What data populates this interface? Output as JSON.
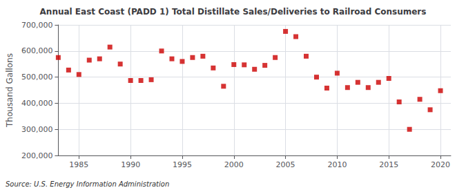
{
  "chart_data": {
    "type": "scatter",
    "title": "Annual East Coast (PADD 1) Total Distillate Sales/Deliveries to Railroad Consumers",
    "ylabel": "Thousand Gallons",
    "annotations": [
      "Source: U.S. Energy Information Administration"
    ],
    "x": [
      1983,
      1984,
      1985,
      1986,
      1987,
      1988,
      1989,
      1990,
      1991,
      1992,
      1993,
      1994,
      1995,
      1996,
      1997,
      1998,
      1999,
      2000,
      2001,
      2002,
      2003,
      2004,
      2005,
      2006,
      2007,
      2008,
      2009,
      2010,
      2011,
      2012,
      2013,
      2014,
      2015,
      2016,
      2017,
      2018,
      2019,
      2020
    ],
    "values": [
      575000,
      527000,
      510000,
      565000,
      570000,
      615000,
      550000,
      487000,
      487000,
      490000,
      600000,
      570000,
      560000,
      575000,
      580000,
      535000,
      465000,
      548000,
      547000,
      530000,
      545000,
      575000,
      675000,
      655000,
      580000,
      500000,
      458000,
      515000,
      460000,
      480000,
      460000,
      480000,
      495000,
      405000,
      300000,
      415000,
      375000,
      448000
    ],
    "color": "#cc0000",
    "marker": "square",
    "xlim": [
      1983,
      2021
    ],
    "xticks": [
      1985,
      1990,
      1995,
      2000,
      2005,
      2010,
      2015,
      2020
    ],
    "ylim": [
      200000,
      700000
    ],
    "yticks": [
      {
        "value": 200000,
        "label": "200,000"
      },
      {
        "value": 300000,
        "label": "300,000"
      },
      {
        "value": 400000,
        "label": "400,000"
      },
      {
        "value": 500000,
        "label": "500,000"
      },
      {
        "value": 600000,
        "label": "600,000"
      },
      {
        "value": 700000,
        "label": "700,000"
      }
    ],
    "grid": true
  }
}
